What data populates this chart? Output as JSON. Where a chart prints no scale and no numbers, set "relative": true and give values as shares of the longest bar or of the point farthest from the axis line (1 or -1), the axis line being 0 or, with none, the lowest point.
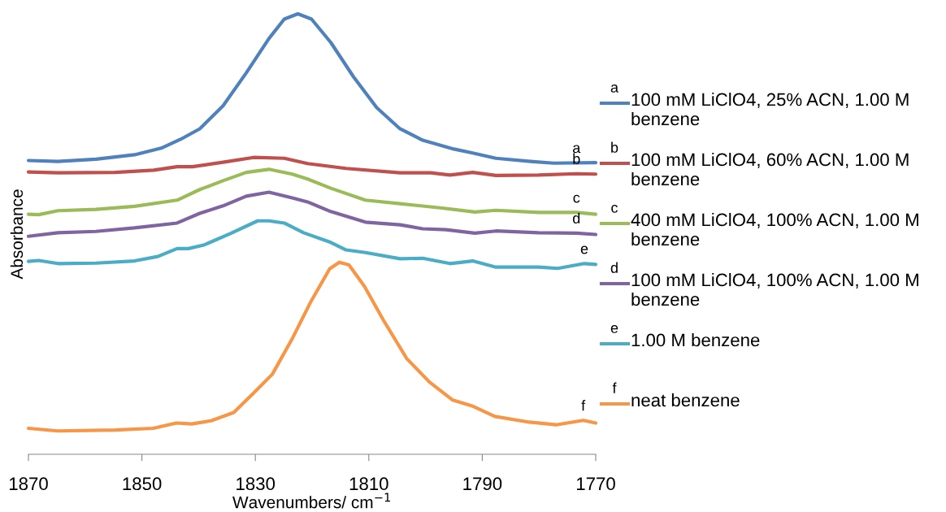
{
  "chart_data": {
    "type": "line",
    "relative": true,
    "xlabel": "Wavenumbers/ cm$^{−1}$",
    "ylabel": "Absorbance",
    "xlim": [
      1870,
      1770
    ],
    "xticks": [
      1870,
      1850,
      1830,
      1810,
      1790,
      1770
    ],
    "grid": false,
    "legend": "right",
    "marker": "none",
    "line_style": "solid",
    "series": [
      {
        "name": "100 mM LiClO4, 25% ACN, 1.00 M benzene",
        "color": "#4f81bd",
        "x": [
          1870,
          1864.8,
          1858.1,
          1851.3,
          1846.6,
          1843.2,
          1839.8,
          1835.7,
          1831.6,
          1827.6,
          1824.9,
          1822.5,
          1820.1,
          1816.7,
          1812.7,
          1808.6,
          1804.5,
          1800.5,
          1795.0,
          1791.7,
          1787.6,
          1781.5,
          1777.4,
          1770
        ],
        "values": [
          0.667,
          0.665,
          0.67,
          0.68,
          0.695,
          0.715,
          0.739,
          0.791,
          0.866,
          0.944,
          0.988,
          1.0,
          0.988,
          0.935,
          0.857,
          0.787,
          0.739,
          0.713,
          0.693,
          0.684,
          0.672,
          0.665,
          0.661,
          0.662
        ]
      },
      {
        "name": "100 mM LiClO4, 60% ACN, 1.00 M benzene",
        "color": "#c0504d",
        "x": [
          1870,
          1864.8,
          1854.7,
          1847.9,
          1843.8,
          1841.1,
          1835.7,
          1830.3,
          1824.9,
          1820.8,
          1814.0,
          1804.5,
          1799.1,
          1795.7,
          1791.7,
          1787.6,
          1780.1,
          1773.4,
          1770
        ],
        "values": [
          0.641,
          0.639,
          0.64,
          0.645,
          0.653,
          0.653,
          0.663,
          0.674,
          0.672,
          0.66,
          0.649,
          0.639,
          0.639,
          0.634,
          0.64,
          0.633,
          0.634,
          0.637,
          0.636
        ]
      },
      {
        "name": "400 mM LiClO4, 100% ACN, 1.00 M benzene",
        "color": "#9bbb59",
        "x": [
          1870,
          1868.2,
          1864.8,
          1858.1,
          1851.3,
          1843.8,
          1839.8,
          1835.7,
          1831.6,
          1827.6,
          1823.5,
          1820.8,
          1816.7,
          1810.6,
          1804.5,
          1797.1,
          1791.3,
          1787.6,
          1780.1,
          1773.4,
          1770
        ],
        "values": [
          0.545,
          0.544,
          0.553,
          0.556,
          0.563,
          0.577,
          0.601,
          0.621,
          0.64,
          0.647,
          0.636,
          0.625,
          0.604,
          0.577,
          0.569,
          0.559,
          0.55,
          0.554,
          0.549,
          0.549,
          0.545
        ]
      },
      {
        "name": "100 mM LiClO4, 100% ACN, 1.00 M benzene",
        "color": "#8064a2",
        "x": [
          1870,
          1864.8,
          1858.1,
          1851.3,
          1843.8,
          1839.8,
          1835.7,
          1831.6,
          1827.6,
          1823.5,
          1820.8,
          1816.7,
          1810.6,
          1804.5,
          1800.5,
          1796.4,
          1791.3,
          1787.6,
          1780.1,
          1773.4,
          1770
        ],
        "values": [
          0.495,
          0.503,
          0.506,
          0.514,
          0.525,
          0.547,
          0.564,
          0.586,
          0.595,
          0.582,
          0.573,
          0.551,
          0.527,
          0.521,
          0.512,
          0.51,
          0.502,
          0.507,
          0.503,
          0.502,
          0.499
        ]
      },
      {
        "name": "1.00 M benzene",
        "color": "#4bacc6",
        "x": [
          1870,
          1868.2,
          1864.8,
          1858.1,
          1851.3,
          1847.2,
          1843.8,
          1841.8,
          1839.1,
          1834.4,
          1829.6,
          1827.6,
          1824.9,
          1821.5,
          1816.7,
          1814.0,
          1810.6,
          1804.5,
          1800.5,
          1795.7,
          1791.7,
          1787.6,
          1780.1,
          1776.7,
          1772.0,
          1770
        ],
        "values": [
          0.438,
          0.44,
          0.433,
          0.434,
          0.439,
          0.449,
          0.467,
          0.467,
          0.475,
          0.501,
          0.53,
          0.53,
          0.525,
          0.503,
          0.481,
          0.464,
          0.458,
          0.444,
          0.445,
          0.433,
          0.439,
          0.425,
          0.425,
          0.422,
          0.433,
          0.431
        ]
      },
      {
        "name": "neat benzene",
        "color": "#f79646",
        "x": [
          1870,
          1864.9,
          1854.7,
          1848.0,
          1843.9,
          1841.2,
          1837.8,
          1833.8,
          1830.4,
          1827.0,
          1823.6,
          1820.2,
          1816.9,
          1815.2,
          1813.5,
          1810.8,
          1807.4,
          1803.3,
          1799.3,
          1795.2,
          1791.8,
          1787.8,
          1781.7,
          1777.0,
          1772.2,
          1770
        ],
        "values": [
          0.059,
          0.053,
          0.055,
          0.059,
          0.071,
          0.069,
          0.076,
          0.095,
          0.138,
          0.182,
          0.26,
          0.347,
          0.421,
          0.436,
          0.43,
          0.382,
          0.304,
          0.217,
          0.164,
          0.123,
          0.11,
          0.086,
          0.073,
          0.067,
          0.077,
          0.071
        ]
      }
    ],
    "annotations": [
      {
        "text": "a",
        "x": 1773.4,
        "y": 0.662
      },
      {
        "text": "b",
        "x": 1773.4,
        "y": 0.637
      },
      {
        "text": "c",
        "x": 1773.4,
        "y": 0.549
      },
      {
        "text": "d",
        "x": 1773.4,
        "y": 0.502
      },
      {
        "text": "e",
        "x": 1772.0,
        "y": 0.433
      },
      {
        "text": "f",
        "x": 1772.2,
        "y": 0.077
      },
      "a",
      "b",
      "c",
      "d",
      "e",
      "f"
    ]
  }
}
